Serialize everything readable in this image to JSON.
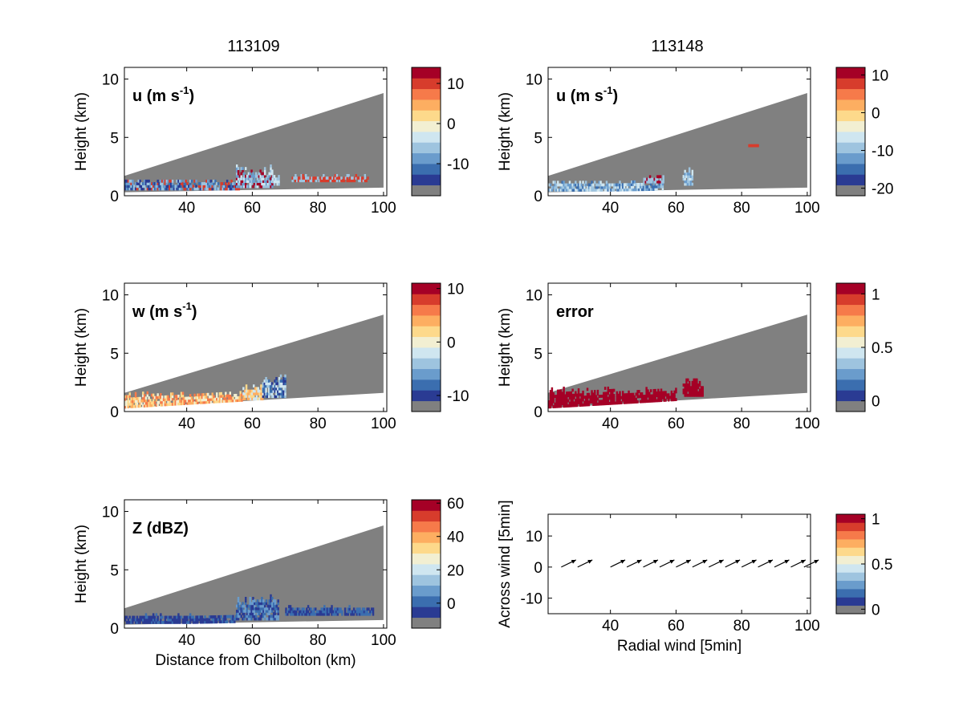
{
  "figure": {
    "column_titles": [
      "113109",
      "113148"
    ],
    "colors": {
      "beam_gray": "#808080",
      "palette": [
        "#808080",
        "#2a3b93",
        "#3b6eaf",
        "#6a9ccc",
        "#9ec4df",
        "#cfe6f0",
        "#f2efd2",
        "#fdd98b",
        "#fdae61",
        "#f67a4a",
        "#d73c2c",
        "#a50026"
      ]
    }
  },
  "chart_data": [
    {
      "id": "u-113109",
      "type": "heatmap",
      "panel_label": "u (m s",
      "panel_label_sup": "-1",
      "ylabel": "Height (km)",
      "xlabel": "",
      "xlim": [
        21,
        101
      ],
      "ylim": [
        0,
        11
      ],
      "xticks": [
        40,
        60,
        80,
        100
      ],
      "yticks": [
        0,
        5,
        10
      ],
      "beam": {
        "x_start": 21,
        "x_end": 100,
        "bottom_start": 0.3,
        "bottom_end": 0.7,
        "top_start": 1.7,
        "top_end": 8.8
      },
      "colorbar": {
        "ticks": [
          10,
          0,
          -10
        ],
        "range": [
          -18,
          14
        ]
      },
      "echo_segments": [
        {
          "x0": 21,
          "x1": 56,
          "h0": 0.5,
          "h1": 1.3,
          "cls": [
            2,
            3,
            4,
            1,
            10
          ]
        },
        {
          "x0": 55,
          "x1": 66,
          "h0": 0.7,
          "h1": 2.5,
          "cls": [
            4,
            5,
            3,
            11
          ]
        },
        {
          "x0": 66,
          "x1": 68,
          "h0": 0.9,
          "h1": 1.7,
          "cls": [
            4,
            5
          ]
        },
        {
          "x0": 72,
          "x1": 95,
          "h0": 1.2,
          "h1": 1.7,
          "cls": [
            10,
            4
          ]
        }
      ]
    },
    {
      "id": "u-113148",
      "type": "heatmap",
      "panel_label": "u (m s",
      "panel_label_sup": "-1",
      "ylabel": "Height (km)",
      "xlabel": "",
      "xlim": [
        21,
        101
      ],
      "ylim": [
        0,
        11
      ],
      "xticks": [
        40,
        60,
        80,
        100
      ],
      "yticks": [
        0,
        5,
        10
      ],
      "beam": {
        "x_start": 21,
        "x_end": 100,
        "bottom_start": 0.3,
        "bottom_end": 0.7,
        "top_start": 1.7,
        "top_end": 8.8
      },
      "colorbar": {
        "ticks": [
          10,
          0,
          -10,
          -20
        ],
        "range": [
          -22,
          12
        ]
      },
      "echo_segments": [
        {
          "x0": 21,
          "x1": 56,
          "h0": 0.4,
          "h1": 1.2,
          "cls": [
            3,
            4,
            2,
            5
          ]
        },
        {
          "x0": 50,
          "x1": 56,
          "h0": 1.1,
          "h1": 1.6,
          "cls": [
            11,
            4
          ]
        },
        {
          "x0": 62,
          "x1": 65,
          "h0": 0.9,
          "h1": 2.3,
          "cls": [
            4,
            5,
            3
          ]
        },
        {
          "x0": 82,
          "x1": 85,
          "h0": 4.2,
          "h1": 4.4,
          "cls": [
            10
          ]
        }
      ]
    },
    {
      "id": "w-113109",
      "type": "heatmap",
      "panel_label": "w (m s",
      "panel_label_sup": "-1",
      "ylabel": "Height (km)",
      "xlabel": "",
      "xlim": [
        21,
        101
      ],
      "ylim": [
        0,
        11
      ],
      "xticks": [
        40,
        60,
        80,
        100
      ],
      "yticks": [
        0,
        5,
        10
      ],
      "beam": {
        "x_start": 21,
        "x_end": 100,
        "bottom_start": 0.3,
        "bottom_end": 1.6,
        "top_start": 1.6,
        "top_end": 8.3
      },
      "colorbar": {
        "ticks": [
          10,
          0,
          -10
        ],
        "range": [
          -13,
          11
        ]
      },
      "echo_segments": [
        {
          "x0": 21,
          "x1": 57,
          "h0": 0.3,
          "h1": 1.6,
          "cls": [
            7,
            8,
            6,
            9
          ]
        },
        {
          "x0": 57,
          "x1": 63,
          "h0": 1.0,
          "h1": 2.2,
          "cls": [
            7,
            8,
            5
          ]
        },
        {
          "x0": 63,
          "x1": 70,
          "h0": 1.2,
          "h1": 3.2,
          "cls": [
            4,
            5,
            2,
            1
          ]
        }
      ]
    },
    {
      "id": "error-113148",
      "type": "heatmap",
      "panel_label": "error",
      "panel_label_sup": "",
      "ylabel": "Height (km)",
      "xlabel": "",
      "xlim": [
        21,
        101
      ],
      "ylim": [
        0,
        11
      ],
      "xticks": [
        40,
        60,
        80,
        100
      ],
      "yticks": [
        0,
        5,
        10
      ],
      "beam": {
        "x_start": 21,
        "x_end": 100,
        "bottom_start": 0.3,
        "bottom_end": 1.6,
        "top_start": 1.6,
        "top_end": 8.3
      },
      "colorbar": {
        "ticks": [
          1,
          0.5,
          0
        ],
        "range": [
          -0.1,
          1.1
        ]
      },
      "echo_segments": [
        {
          "x0": 21,
          "x1": 60,
          "h0": 0.3,
          "h1": 2.0,
          "cls": [
            11
          ]
        },
        {
          "x0": 62,
          "x1": 68,
          "h0": 1.3,
          "h1": 2.8,
          "cls": [
            11
          ]
        }
      ]
    },
    {
      "id": "z-113109",
      "type": "heatmap",
      "panel_label": "Z (dBZ)",
      "panel_label_sup": "",
      "ylabel": "Height (km)",
      "xlabel": "Distance from Chilbolton (km)",
      "xlim": [
        21,
        101
      ],
      "ylim": [
        0,
        11
      ],
      "xticks": [
        40,
        60,
        80,
        100
      ],
      "yticks": [
        0,
        5,
        10
      ],
      "beam": {
        "x_start": 21,
        "x_end": 100,
        "bottom_start": 0.3,
        "bottom_end": 0.7,
        "top_start": 1.7,
        "top_end": 8.8
      },
      "colorbar": {
        "ticks": [
          60,
          40,
          20,
          0
        ],
        "range": [
          -15,
          62
        ]
      },
      "echo_segments": [
        {
          "x0": 21,
          "x1": 55,
          "h0": 0.4,
          "h1": 1.1,
          "cls": [
            1,
            2,
            1
          ]
        },
        {
          "x0": 55,
          "x1": 68,
          "h0": 0.7,
          "h1": 2.8,
          "cls": [
            1,
            2,
            3
          ]
        },
        {
          "x0": 70,
          "x1": 97,
          "h0": 1.1,
          "h1": 1.8,
          "cls": [
            1,
            2
          ]
        }
      ]
    },
    {
      "id": "wind-vectors",
      "type": "scatter",
      "panel_label": "",
      "panel_label_sup": "",
      "ylabel": "Across wind [5min]",
      "xlabel": "Radial wind [5min]",
      "xlim": [
        21,
        101
      ],
      "ylim": [
        -15,
        17
      ],
      "xticks": [
        40,
        60,
        80,
        100
      ],
      "yticks": [
        -10,
        0,
        10
      ],
      "colorbar": {
        "ticks": [
          1,
          0.5,
          0
        ],
        "range": [
          -0.05,
          1.05
        ]
      },
      "arrows": {
        "x": [
          25,
          30,
          40,
          45,
          50,
          55,
          60,
          65,
          70,
          75,
          80,
          85,
          90,
          95,
          99
        ],
        "y": [
          0,
          0,
          0,
          0,
          0,
          0,
          0,
          0,
          0,
          0,
          0,
          0,
          0,
          0,
          0
        ],
        "u": [
          4.5,
          4.5,
          4.5,
          4.5,
          4.5,
          4.5,
          4.5,
          4.5,
          4.5,
          4.5,
          4.5,
          4.5,
          4.5,
          4.5,
          4.5
        ],
        "v": [
          2.3,
          2.3,
          2.3,
          2.3,
          2.3,
          2.3,
          2.3,
          2.3,
          2.3,
          2.3,
          2.3,
          2.3,
          2.3,
          2.3,
          2.3
        ]
      }
    }
  ]
}
